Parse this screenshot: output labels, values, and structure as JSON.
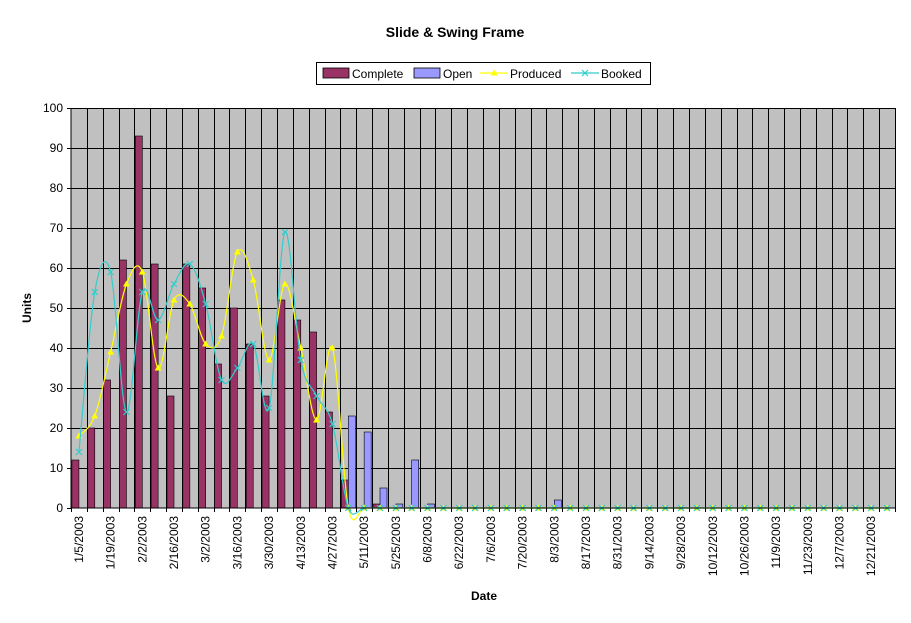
{
  "chart_data": {
    "type": "bar",
    "title": "Slide & Swing Frame",
    "xlabel": "Date",
    "ylabel": "Units",
    "ylim": [
      0,
      100
    ],
    "yticks": [
      0,
      10,
      20,
      30,
      40,
      50,
      60,
      70,
      80,
      90,
      100
    ],
    "grid": true,
    "legend_position": "top",
    "plot_background": "#c0c0c0",
    "categories": [
      "1/5/2003",
      "1/12/2003",
      "1/19/2003",
      "1/26/2003",
      "2/2/2003",
      "2/9/2003",
      "2/16/2003",
      "2/23/2003",
      "3/2/2003",
      "3/9/2003",
      "3/16/2003",
      "3/23/2003",
      "3/30/2003",
      "4/6/2003",
      "4/13/2003",
      "4/20/2003",
      "4/27/2003",
      "5/4/2003",
      "5/11/2003",
      "5/18/2003",
      "5/25/2003",
      "6/1/2003",
      "6/8/2003",
      "6/15/2003",
      "6/22/2003",
      "6/29/2003",
      "7/6/2003",
      "7/13/2003",
      "7/20/2003",
      "7/27/2003",
      "8/3/2003",
      "8/10/2003",
      "8/17/2003",
      "8/24/2003",
      "8/31/2003",
      "9/7/2003",
      "9/14/2003",
      "9/21/2003",
      "9/28/2003",
      "10/5/2003",
      "10/12/2003",
      "10/19/2003",
      "10/26/2003",
      "11/2/2003",
      "11/9/2003",
      "11/16/2003",
      "11/23/2003",
      "11/30/2003",
      "12/7/2003",
      "12/14/2003",
      "12/21/2003",
      "12/28/2003"
    ],
    "tick_labels": [
      "1/5/2003",
      "1/19/2003",
      "2/2/2003",
      "2/16/2003",
      "3/2/2003",
      "3/16/2003",
      "3/30/2003",
      "4/13/2003",
      "4/27/2003",
      "5/11/2003",
      "5/25/2003",
      "6/8/2003",
      "6/22/2003",
      "7/6/2003",
      "7/20/2003",
      "8/3/2003",
      "8/17/2003",
      "8/31/2003",
      "9/14/2003",
      "9/28/2003",
      "10/12/2003",
      "10/26/2003",
      "11/9/2003",
      "11/23/2003",
      "12/7/2003",
      "12/21/2003"
    ],
    "series": [
      {
        "name": "Complete",
        "kind": "bar",
        "color": "#993366",
        "values": [
          12,
          20,
          32,
          62,
          93,
          61,
          28,
          61,
          55,
          36,
          50,
          41,
          28,
          52,
          47,
          44,
          24,
          7,
          0,
          1,
          0,
          0,
          0,
          0,
          0,
          0,
          0,
          0,
          0,
          0,
          0,
          0,
          0,
          0,
          0,
          0,
          0,
          0,
          0,
          0,
          0,
          0,
          0,
          0,
          0,
          0,
          0,
          0,
          0,
          0,
          0,
          0
        ]
      },
      {
        "name": "Open",
        "kind": "bar",
        "color": "#9999ff",
        "values": [
          0,
          0,
          0,
          0,
          0,
          0,
          0,
          0,
          0,
          0,
          0,
          0,
          0,
          0,
          0,
          0,
          0,
          23,
          19,
          5,
          1,
          12,
          1,
          0,
          0,
          0,
          0,
          0,
          0,
          0,
          2,
          0,
          0,
          0,
          0,
          0,
          0,
          0,
          0,
          0,
          0,
          0,
          0,
          0,
          0,
          0,
          0,
          0,
          0,
          0,
          0,
          0
        ]
      },
      {
        "name": "Produced",
        "kind": "line",
        "color": "#ffff00",
        "marker": "triangle",
        "values": [
          18,
          23,
          39,
          56,
          59,
          35,
          52,
          51,
          41,
          43,
          64,
          57,
          37,
          56,
          40,
          22,
          40,
          0,
          0,
          0,
          0,
          0,
          0,
          0,
          0,
          0,
          0,
          0,
          0,
          0,
          0,
          0,
          0,
          0,
          0,
          0,
          0,
          0,
          0,
          0,
          0,
          0,
          0,
          0,
          0,
          0,
          0,
          0,
          0,
          0,
          0,
          0
        ]
      },
      {
        "name": "Booked",
        "kind": "line",
        "color": "#33cccc",
        "marker": "x",
        "values": [
          14,
          54,
          59,
          24,
          54,
          47,
          56,
          61,
          51,
          32,
          35,
          41,
          25,
          69,
          37,
          28,
          21,
          0,
          0,
          0,
          0,
          0,
          0,
          0,
          0,
          0,
          0,
          0,
          0,
          0,
          0,
          0,
          0,
          0,
          0,
          0,
          0,
          0,
          0,
          0,
          0,
          0,
          0,
          0,
          0,
          0,
          0,
          0,
          0,
          0,
          0,
          0
        ]
      }
    ]
  }
}
